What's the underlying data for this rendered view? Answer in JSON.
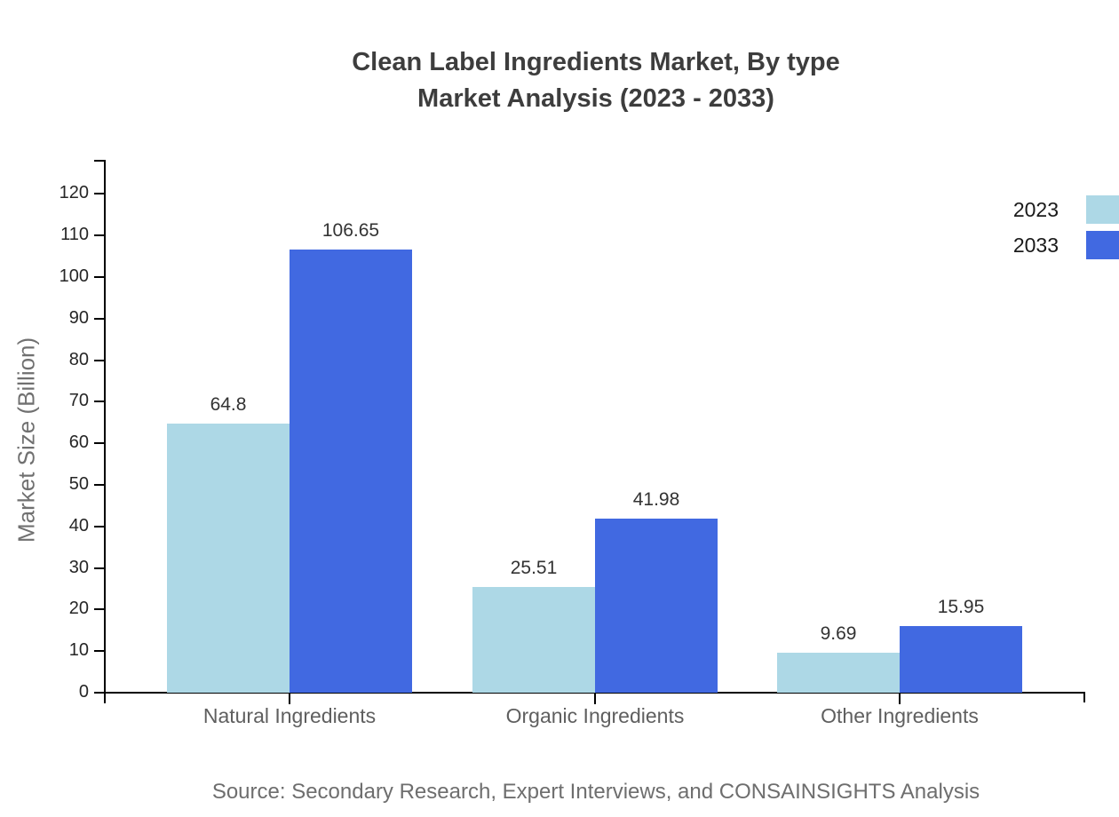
{
  "title": {
    "line1": "Clean Label Ingredients Market, By type",
    "line2": "Market Analysis (2023 - 2033)"
  },
  "chart_data": {
    "type": "bar",
    "categories": [
      "Natural Ingredients",
      "Organic Ingredients",
      "Other Ingredients"
    ],
    "series": [
      {
        "name": "2023",
        "color": "#ADD8E6",
        "values": [
          64.8,
          25.51,
          9.69
        ]
      },
      {
        "name": "2033",
        "color": "#4169E1",
        "values": [
          106.65,
          41.98,
          15.95
        ]
      }
    ],
    "value_labels": [
      "64.8",
      "106.65",
      "25.51",
      "41.98",
      "9.69",
      "15.95"
    ],
    "title": "Clean Label Ingredients Market, By type Market Analysis (2023 - 2033)",
    "xlabel": "",
    "ylabel": "Market Size (Billion)",
    "ylim": [
      0,
      120
    ],
    "ytick_step": 10,
    "yticks": [
      0,
      10,
      20,
      30,
      40,
      50,
      60,
      70,
      80,
      90,
      100,
      110,
      120
    ],
    "grid": false,
    "legend_position": "top-right",
    "legend_entries": [
      "2023",
      "2033"
    ]
  },
  "colors": {
    "series_2023": "#ADD8E6",
    "series_2033": "#4169E1",
    "axis": "#000000",
    "title_text": "#3d3d3d",
    "tick_text": "#262626",
    "category_text": "#5f5f5f",
    "value_text": "#333333",
    "source_text": "#6e6e6e"
  },
  "source_note": "Source: Secondary Research, Expert Interviews, and CONSAINSIGHTS Analysis"
}
